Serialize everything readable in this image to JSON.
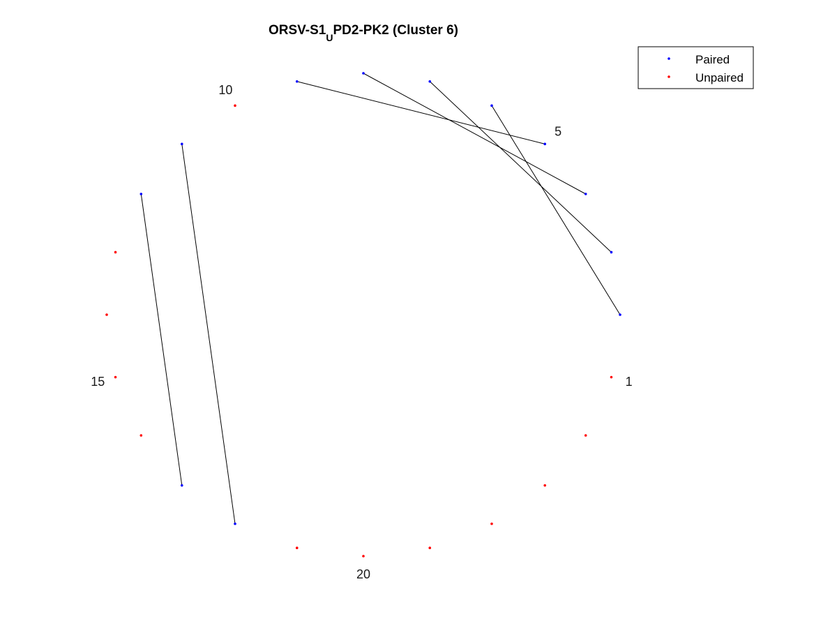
{
  "title": {
    "prefix": "ORSV-S1",
    "subscript": "U",
    "suffix": "PD2-PK2 (Cluster 6)"
  },
  "colors": {
    "paired": "#0000ff",
    "unpaired": "#ff0000",
    "link": "#000000"
  },
  "legend": {
    "paired_label": "Paired",
    "unpaired_label": "Unpaired",
    "placement": "top-right"
  },
  "chart_data": {
    "type": "arc-diagram-circular",
    "node_count": 24,
    "numbering": "counter-clockwise starting at right",
    "index_labels": [
      "1",
      "5",
      "10",
      "15",
      "20"
    ],
    "labeled_nodes": [
      1,
      5,
      10,
      15,
      20
    ],
    "pairs": [
      [
        2,
        6
      ],
      [
        3,
        7
      ],
      [
        4,
        8
      ],
      [
        5,
        9
      ],
      [
        11,
        18
      ],
      [
        12,
        17
      ]
    ],
    "unpaired": [
      1,
      10,
      13,
      14,
      15,
      16,
      19,
      20,
      21,
      22,
      23,
      24
    ]
  }
}
